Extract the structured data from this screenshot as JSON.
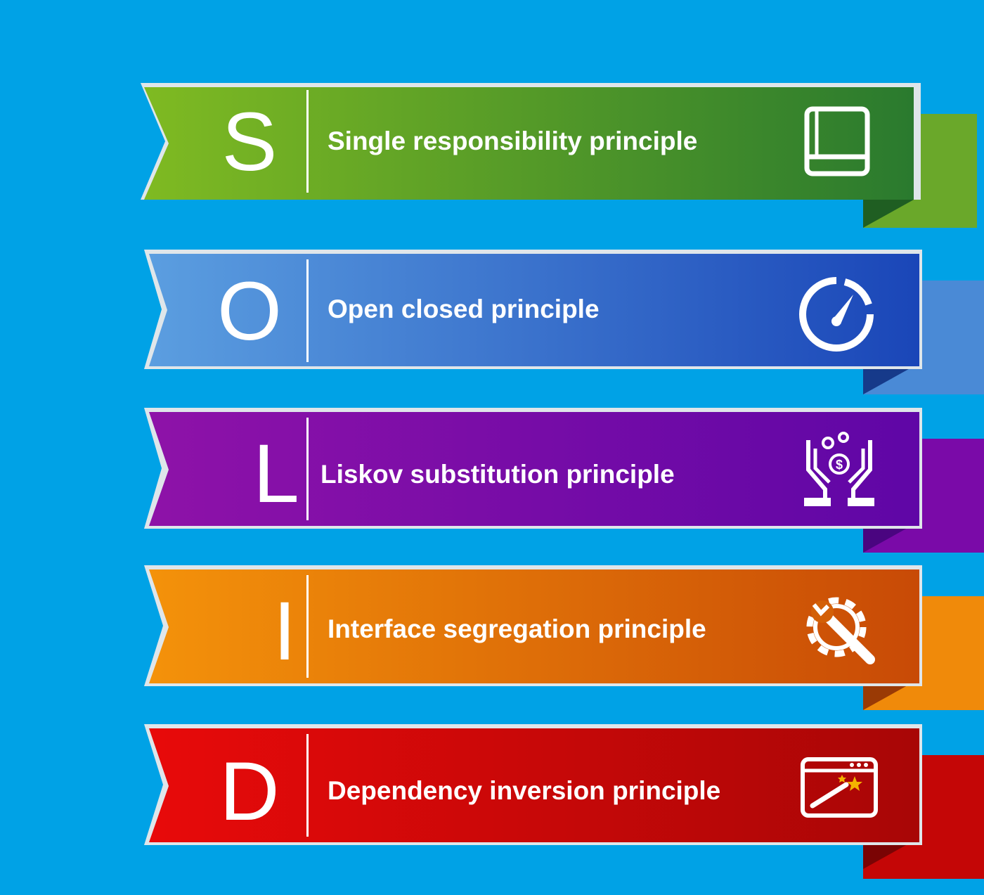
{
  "principles": [
    {
      "letter": "S",
      "label": "Single responsibility principle",
      "icon": "book-icon",
      "from": "#7fba22",
      "to": "#2a7a2e",
      "fold": "#1f5e22",
      "tab": "#6aa82a"
    },
    {
      "letter": "O",
      "label": "Open closed principle",
      "icon": "speedometer-icon",
      "from": "#5b9ee0",
      "to": "#1a46b8",
      "fold": "#163a8a",
      "tab": "#4a8ad6"
    },
    {
      "letter": "L",
      "label": "Liskov substitution principle",
      "icon": "hands-money-icon",
      "from": "#8e12a8",
      "to": "#5f06a6",
      "fold": "#4a0580",
      "tab": "#7a0aa8"
    },
    {
      "letter": "I",
      "label": "Interface segregation principle",
      "icon": "gear-wrench-icon",
      "from": "#f4920a",
      "to": "#c84a06",
      "fold": "#9a3a05",
      "tab": "#f08a0a"
    },
    {
      "letter": "D",
      "label": "Dependency inversion principle",
      "icon": "browser-wand-icon",
      "from": "#e80a0a",
      "to": "#a80606",
      "fold": "#7a0404",
      "tab": "#c40606"
    }
  ]
}
